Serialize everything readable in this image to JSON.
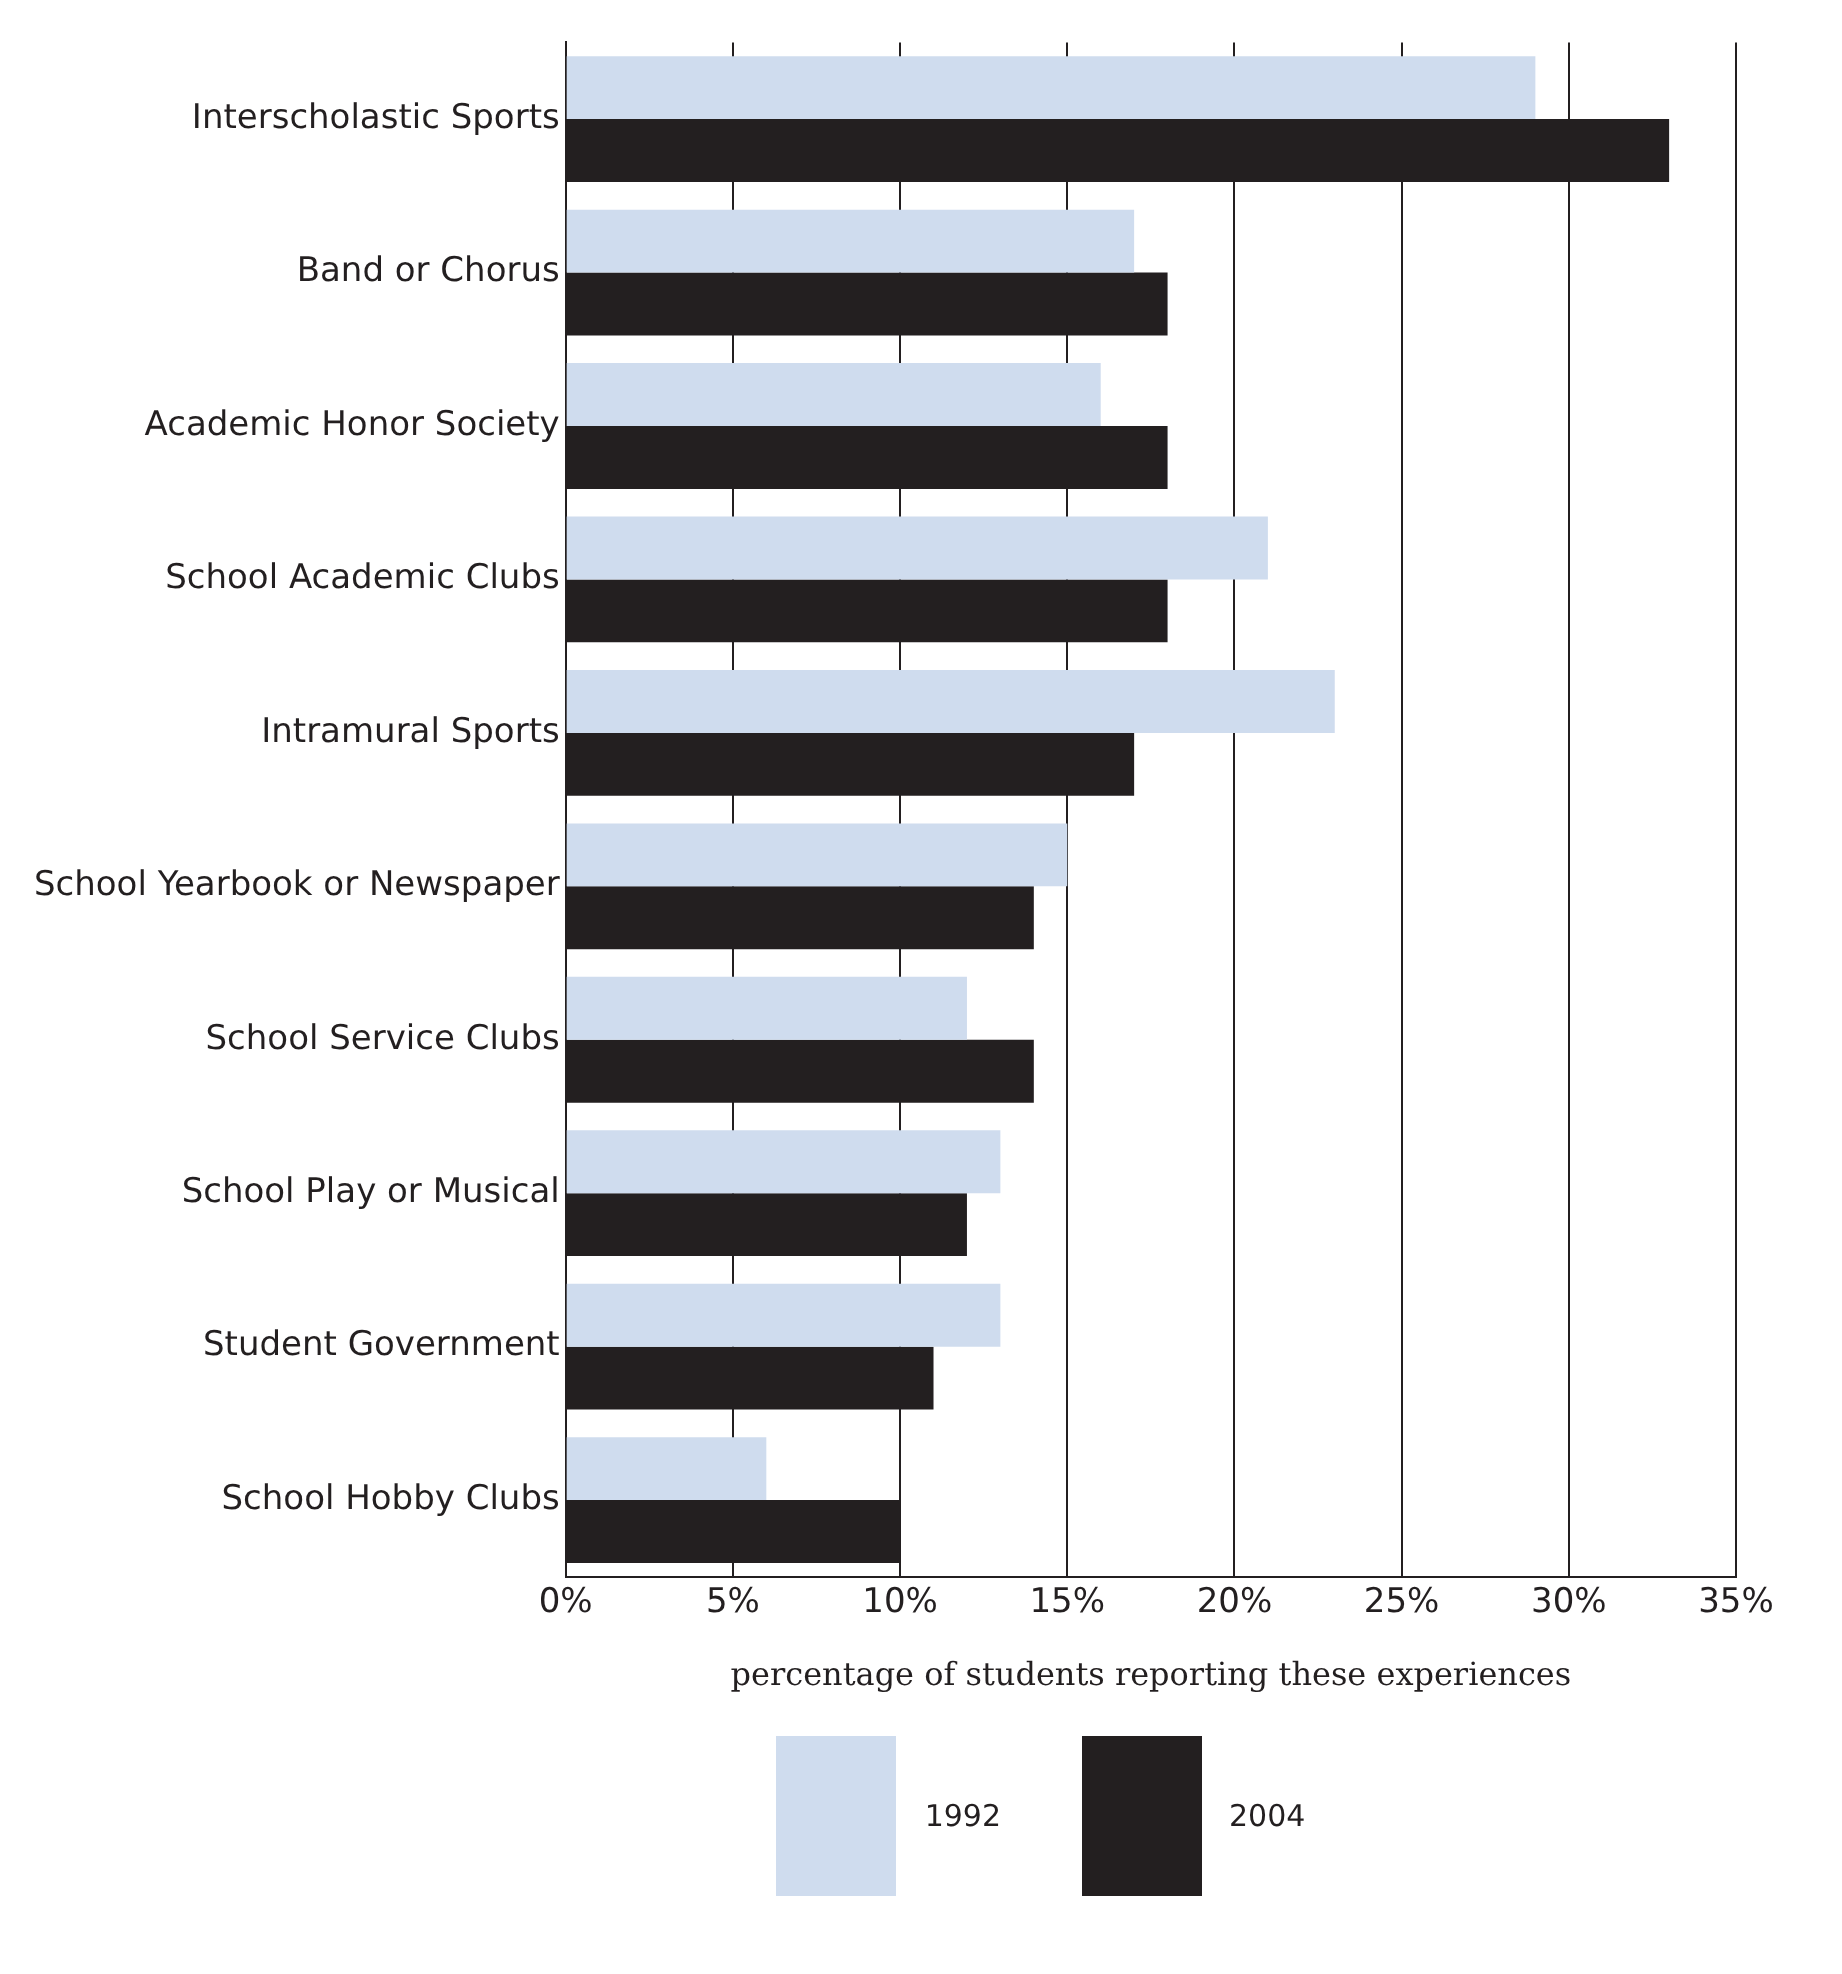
{
  "chart_data": {
    "type": "bar",
    "orientation": "horizontal",
    "xlabel": "percentage of students reporting these experiences",
    "categories": [
      "Interscholastic Sports",
      "Band or Chorus",
      "Academic Honor Society",
      "School Academic Clubs",
      "Intramural Sports",
      "School Yearbook or Newspaper",
      "School Service Clubs",
      "School Play or Musical",
      "Student Government",
      "School Hobby Clubs"
    ],
    "series": [
      {
        "name": "1992",
        "color": "#cfdcee",
        "values": [
          29,
          17,
          16,
          21,
          23,
          15,
          12,
          13,
          13,
          6
        ]
      },
      {
        "name": "2004",
        "color": "#231f20",
        "values": [
          33,
          18,
          18,
          18,
          17,
          14,
          14,
          12,
          11,
          10
        ]
      }
    ],
    "xlim": [
      0,
      35
    ],
    "xticks": [
      {
        "value": 0,
        "label": "0%"
      },
      {
        "value": 5,
        "label": "5%"
      },
      {
        "value": 10,
        "label": "10%"
      },
      {
        "value": 15,
        "label": "15%"
      },
      {
        "value": 20,
        "label": "20%"
      },
      {
        "value": 25,
        "label": "25%"
      },
      {
        "value": 30,
        "label": "30%"
      },
      {
        "value": 35,
        "label": "35%"
      }
    ],
    "grid": "x",
    "legend": "bottom"
  }
}
